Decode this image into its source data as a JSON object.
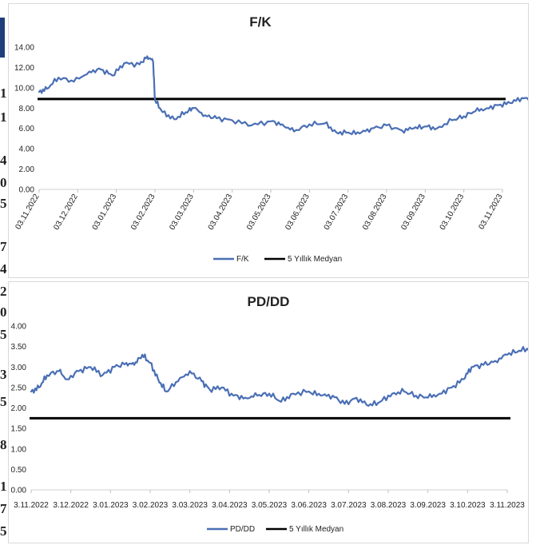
{
  "edge": {
    "fragments": [
      "1",
      "1",
      "4",
      "0",
      "5",
      "7",
      "4",
      "2",
      "0",
      "5",
      "3",
      "5",
      "8",
      "1",
      "7",
      "5"
    ]
  },
  "chart_data": [
    {
      "type": "line",
      "title": "F/K",
      "xlabel": "",
      "ylabel": "",
      "ylim": [
        0,
        14
      ],
      "yticks": [
        "0.00",
        "2.00",
        "4.00",
        "6.00",
        "8.00",
        "10.00",
        "12.00",
        "14.00"
      ],
      "xticks": [
        "03.11.2022",
        "03.12.2022",
        "03.01.2023",
        "03.02.2023",
        "03.03.2023",
        "03.04.2023",
        "03.05.2023",
        "03.06.2023",
        "03.07.2023",
        "03.08.2023",
        "03.09.2023",
        "03.10.2023",
        "03.11.2023"
      ],
      "series": [
        {
          "name": "F/K",
          "color": "#4a6fb5",
          "anchors": [
            [
              0,
              9.6
            ],
            [
              0.2,
              9.9
            ],
            [
              0.5,
              11.0
            ],
            [
              0.9,
              10.6
            ],
            [
              1.3,
              11.6
            ],
            [
              1.6,
              11.8
            ],
            [
              1.9,
              11.2
            ],
            [
              2.2,
              12.4
            ],
            [
              2.6,
              12.3
            ],
            [
              2.8,
              13.1
            ],
            [
              2.95,
              12.6
            ],
            [
              3.0,
              8.8
            ],
            [
              3.2,
              7.6
            ],
            [
              3.5,
              6.9
            ],
            [
              3.8,
              7.6
            ],
            [
              4.0,
              8.0
            ],
            [
              4.3,
              7.3
            ],
            [
              4.6,
              7.0
            ],
            [
              5.0,
              6.8
            ],
            [
              5.5,
              6.3
            ],
            [
              6.0,
              6.7
            ],
            [
              6.3,
              6.4
            ],
            [
              6.6,
              5.7
            ],
            [
              7.0,
              6.4
            ],
            [
              7.4,
              6.5
            ],
            [
              7.7,
              5.6
            ],
            [
              8.0,
              5.6
            ],
            [
              8.3,
              5.5
            ],
            [
              8.6,
              6.0
            ],
            [
              9.0,
              6.3
            ],
            [
              9.4,
              5.8
            ],
            [
              9.7,
              6.0
            ],
            [
              10.0,
              6.2
            ],
            [
              10.3,
              6.0
            ],
            [
              10.7,
              6.8
            ],
            [
              11.0,
              7.2
            ],
            [
              11.3,
              7.7
            ],
            [
              11.6,
              8.0
            ],
            [
              11.9,
              8.3
            ],
            [
              12.2,
              8.5
            ],
            [
              12.5,
              9.0
            ],
            [
              12.8,
              8.8
            ],
            [
              13.1,
              9.0
            ],
            [
              13.4,
              9.2
            ],
            [
              13.7,
              8.6
            ],
            [
              14.0,
              8.0
            ],
            [
              14.3,
              7.0
            ],
            [
              14.6,
              6.9
            ],
            [
              14.9,
              6.7
            ],
            [
              15.2,
              6.4
            ],
            [
              15.5,
              6.3
            ],
            [
              15.8,
              6.6
            ],
            [
              16.0,
              6.5
            ],
            [
              16.2,
              6.9
            ]
          ]
        },
        {
          "name": "5 Yıllık Medyan",
          "color": "#000000",
          "value": 8.9
        }
      ],
      "legend": "bottom"
    },
    {
      "type": "line",
      "title": "PD/DD",
      "xlabel": "",
      "ylabel": "",
      "ylim": [
        0,
        4
      ],
      "yticks": [
        "0.00",
        "0.50",
        "1.00",
        "1.50",
        "2.00",
        "2.50",
        "3.00",
        "3.50",
        "4.00"
      ],
      "xticks": [
        "3.11.2022",
        "3.12.2022",
        "3.01.2023",
        "3.02.2023",
        "3.03.2023",
        "3.04.2023",
        "3.05.2023",
        "3.06.2023",
        "3.07.2023",
        "3.08.2023",
        "3.09.2023",
        "3.10.2023",
        "3.11.2023"
      ],
      "series": [
        {
          "name": "PD/DD",
          "color": "#4a6fb5",
          "anchors": [
            [
              0,
              2.4
            ],
            [
              0.2,
              2.5
            ],
            [
              0.4,
              2.8
            ],
            [
              0.7,
              2.9
            ],
            [
              0.9,
              2.7
            ],
            [
              1.2,
              2.9
            ],
            [
              1.5,
              3.0
            ],
            [
              1.8,
              2.8
            ],
            [
              2.1,
              3.0
            ],
            [
              2.4,
              3.1
            ],
            [
              2.6,
              3.05
            ],
            [
              2.8,
              3.3
            ],
            [
              3.0,
              3.1
            ],
            [
              3.2,
              2.7
            ],
            [
              3.4,
              2.4
            ],
            [
              3.7,
              2.65
            ],
            [
              4.0,
              2.9
            ],
            [
              4.3,
              2.65
            ],
            [
              4.5,
              2.45
            ],
            [
              4.8,
              2.5
            ],
            [
              5.1,
              2.3
            ],
            [
              5.4,
              2.25
            ],
            [
              5.7,
              2.3
            ],
            [
              6.0,
              2.35
            ],
            [
              6.3,
              2.15
            ],
            [
              6.6,
              2.35
            ],
            [
              7.0,
              2.4
            ],
            [
              7.3,
              2.3
            ],
            [
              7.6,
              2.3
            ],
            [
              7.9,
              2.1
            ],
            [
              8.2,
              2.25
            ],
            [
              8.5,
              2.05
            ],
            [
              8.8,
              2.15
            ],
            [
              9.1,
              2.35
            ],
            [
              9.4,
              2.4
            ],
            [
              9.7,
              2.3
            ],
            [
              10.0,
              2.25
            ],
            [
              10.3,
              2.35
            ],
            [
              10.6,
              2.5
            ],
            [
              10.9,
              2.7
            ],
            [
              11.1,
              3.0
            ],
            [
              11.4,
              3.05
            ],
            [
              11.7,
              3.15
            ],
            [
              12.0,
              3.3
            ],
            [
              12.3,
              3.4
            ],
            [
              12.6,
              3.45
            ],
            [
              12.9,
              3.5
            ],
            [
              13.1,
              3.4
            ],
            [
              13.4,
              3.15
            ],
            [
              13.7,
              3.0
            ],
            [
              14.0,
              2.9
            ],
            [
              14.3,
              2.8
            ],
            [
              14.6,
              2.7
            ],
            [
              14.9,
              2.65
            ],
            [
              15.2,
              2.75
            ],
            [
              15.4,
              2.8
            ],
            [
              15.6,
              2.85
            ]
          ]
        },
        {
          "name": "5 Yıllık Medyan",
          "color": "#000000",
          "value": 1.75
        }
      ],
      "legend": "bottom"
    }
  ]
}
